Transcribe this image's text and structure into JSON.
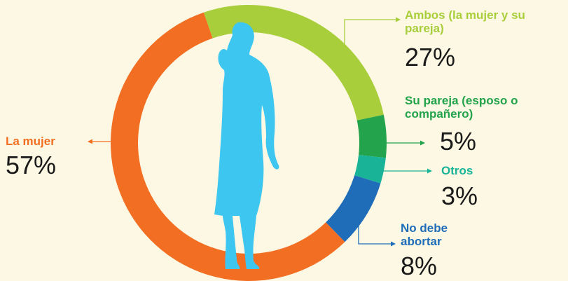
{
  "chart_data": {
    "type": "donut",
    "categories": [
      "Ambos (la mujer y su pareja)",
      "Su pareja (esposo o compañero)",
      "Otros",
      "No debe abortar",
      "La mujer"
    ],
    "values": [
      27,
      5,
      3,
      8,
      57
    ],
    "value_labels": [
      "27%",
      "5%",
      "3%",
      "8%",
      "57%"
    ],
    "colors": [
      "#a9ce3b",
      "#23a34b",
      "#19b497",
      "#1f6db8",
      "#f26e22"
    ]
  }
}
